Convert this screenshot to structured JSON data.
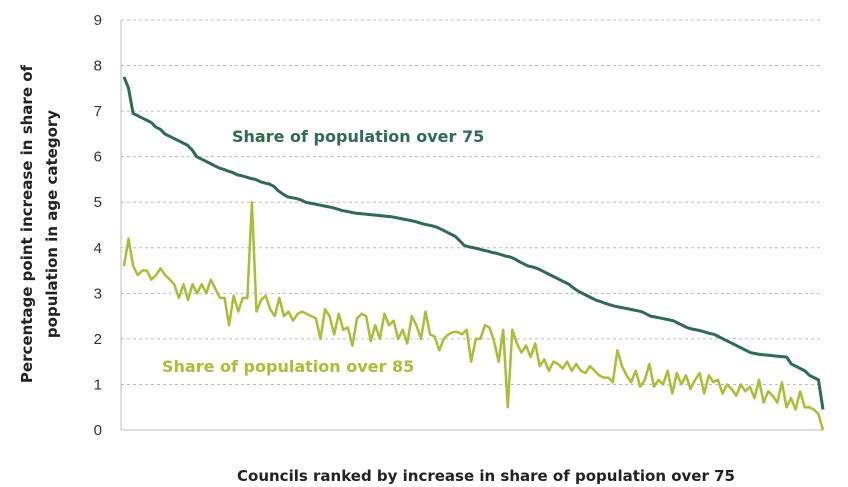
{
  "chart_data": {
    "type": "line",
    "title": "",
    "xlabel": "Councils ranked by increase in share of population over 75",
    "ylabel": "Percentage point increase in share of population in age category",
    "ylabel_lines": [
      "Percentage point increase in share of",
      "population in age category"
    ],
    "ylim": [
      0,
      9
    ],
    "yticks": [
      "0",
      "1",
      "2",
      "3",
      "4",
      "5",
      "6",
      "7",
      "8",
      "9"
    ],
    "grid": "horizontal dashed",
    "legend": "inline labels",
    "series": [
      {
        "name": "Share of population over 75",
        "color": "#2e6b4f",
        "values": [
          7.75,
          7.5,
          6.95,
          6.9,
          6.85,
          6.8,
          6.75,
          6.65,
          6.6,
          6.5,
          6.45,
          6.4,
          6.35,
          6.3,
          6.25,
          6.15,
          6.0,
          5.95,
          5.9,
          5.85,
          5.8,
          5.75,
          5.72,
          5.68,
          5.65,
          5.6,
          5.58,
          5.55,
          5.52,
          5.5,
          5.45,
          5.42,
          5.4,
          5.35,
          5.25,
          5.18,
          5.12,
          5.1,
          5.08,
          5.05,
          5.0,
          4.98,
          4.96,
          4.94,
          4.92,
          4.9,
          4.88,
          4.85,
          4.82,
          4.8,
          4.78,
          4.76,
          4.75,
          4.74,
          4.73,
          4.72,
          4.71,
          4.7,
          4.69,
          4.68,
          4.66,
          4.64,
          4.62,
          4.6,
          4.58,
          4.55,
          4.52,
          4.5,
          4.48,
          4.45,
          4.4,
          4.35,
          4.3,
          4.25,
          4.15,
          4.05,
          4.02,
          4.0,
          3.98,
          3.95,
          3.93,
          3.9,
          3.88,
          3.85,
          3.82,
          3.8,
          3.76,
          3.7,
          3.65,
          3.6,
          3.58,
          3.55,
          3.5,
          3.45,
          3.4,
          3.35,
          3.3,
          3.25,
          3.2,
          3.12,
          3.05,
          3.0,
          2.95,
          2.9,
          2.85,
          2.82,
          2.78,
          2.75,
          2.72,
          2.7,
          2.68,
          2.66,
          2.64,
          2.62,
          2.6,
          2.55,
          2.5,
          2.48,
          2.46,
          2.44,
          2.42,
          2.4,
          2.35,
          2.3,
          2.25,
          2.22,
          2.2,
          2.18,
          2.15,
          2.12,
          2.1,
          2.05,
          2.0,
          1.95,
          1.9,
          1.85,
          1.8,
          1.75,
          1.7,
          1.68,
          1.66,
          1.65,
          1.64,
          1.63,
          1.62,
          1.61,
          1.6,
          1.45,
          1.4,
          1.35,
          1.3,
          1.2,
          1.15,
          1.1,
          0.45
        ]
      },
      {
        "name": "Share of population over 85",
        "color": "#a9bd38",
        "values": [
          3.6,
          4.2,
          3.6,
          3.4,
          3.5,
          3.5,
          3.3,
          3.4,
          3.55,
          3.4,
          3.3,
          3.2,
          2.9,
          3.2,
          2.85,
          3.2,
          3.0,
          3.2,
          3.0,
          3.3,
          3.1,
          2.9,
          2.9,
          2.3,
          2.95,
          2.6,
          2.9,
          2.9,
          5.0,
          2.6,
          2.85,
          2.95,
          2.65,
          2.5,
          2.9,
          2.5,
          2.6,
          2.4,
          2.55,
          2.6,
          2.55,
          2.5,
          2.45,
          2.0,
          2.65,
          2.5,
          2.1,
          2.55,
          2.2,
          2.25,
          1.85,
          2.45,
          2.55,
          2.5,
          1.95,
          2.3,
          2.0,
          2.55,
          2.3,
          2.4,
          2.0,
          2.2,
          1.9,
          2.5,
          2.3,
          2.0,
          2.6,
          2.1,
          2.05,
          1.75,
          2.0,
          2.1,
          2.15,
          2.15,
          2.1,
          2.2,
          1.5,
          2.0,
          2.0,
          2.3,
          2.25,
          1.95,
          1.5,
          2.2,
          0.5,
          2.2,
          1.9,
          1.7,
          1.85,
          1.6,
          1.9,
          1.4,
          1.55,
          1.3,
          1.5,
          1.45,
          1.35,
          1.5,
          1.3,
          1.45,
          1.3,
          1.25,
          1.4,
          1.3,
          1.2,
          1.15,
          1.15,
          1.05,
          1.75,
          1.4,
          1.2,
          1.05,
          1.3,
          0.95,
          1.1,
          1.45,
          0.95,
          1.1,
          1.0,
          1.3,
          0.8,
          1.25,
          1.0,
          1.2,
          0.9,
          1.1,
          1.25,
          0.8,
          1.2,
          1.05,
          1.1,
          0.8,
          1.0,
          0.9,
          0.75,
          1.0,
          0.85,
          0.95,
          0.7,
          1.1,
          0.6,
          0.85,
          0.75,
          0.6,
          1.05,
          0.5,
          0.7,
          0.45,
          0.85,
          0.5,
          0.5,
          0.45,
          0.35,
          0.0
        ]
      }
    ]
  },
  "labels": {
    "over75": "Share of population over 75",
    "over85": "Share of population over 85"
  }
}
